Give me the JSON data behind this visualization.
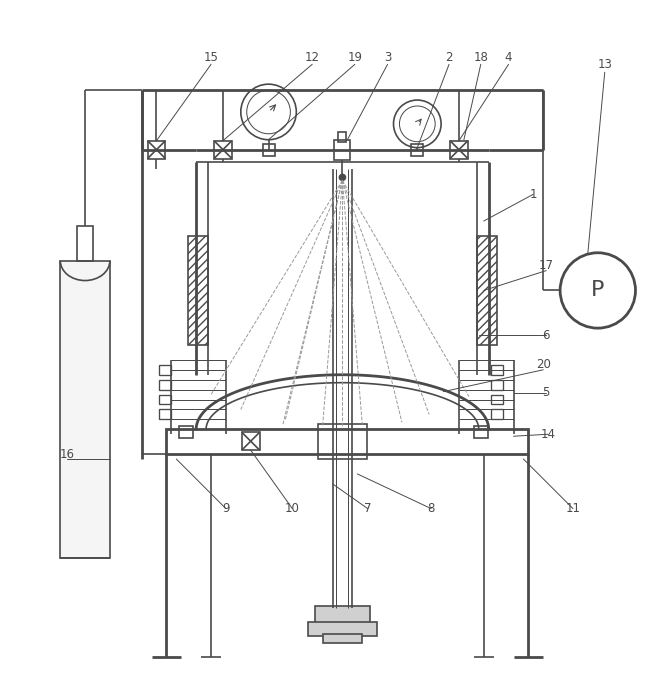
{
  "bg_color": "#ffffff",
  "line_color": "#4a4a4a",
  "lw": 1.2,
  "tlw": 2.0,
  "label_fontsize": 8.5,
  "fig_width": 6.69,
  "fig_height": 6.88
}
